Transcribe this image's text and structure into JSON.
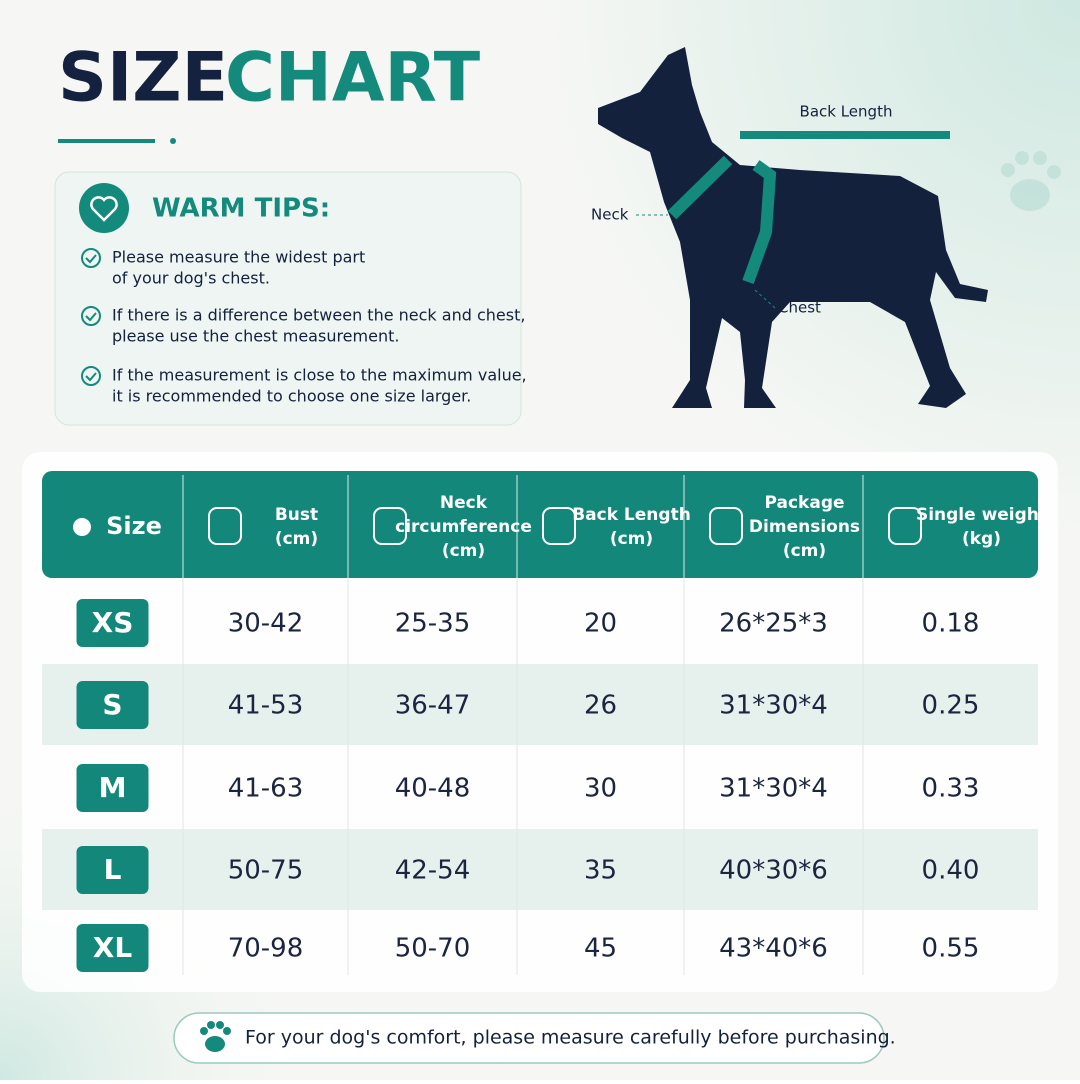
{
  "header": {
    "title_dark": "SIZE",
    "title_accent": "CHART"
  },
  "tips": {
    "title": "WARM TIPS:",
    "items": [
      [
        "Please measure the widest part",
        "of your dog's chest."
      ],
      [
        "If there is a difference between the neck and chest,",
        "please use the chest measurement."
      ],
      [
        "If the measurement is close to the maximum value,",
        "it is recommended to choose one size larger."
      ]
    ]
  },
  "diagram": {
    "back_length": "Back Length",
    "neck": "Neck",
    "chest": "Chest"
  },
  "table": {
    "headers": [
      [
        "Size"
      ],
      [
        "Bust",
        "(cm)"
      ],
      [
        "Neck",
        "circumference",
        "(cm)"
      ],
      [
        "Back Length",
        "(cm)"
      ],
      [
        "Package",
        "Dimensions",
        "(cm)"
      ],
      [
        "Single weight",
        "(kg)"
      ]
    ],
    "rows": [
      [
        "XS",
        "30-42",
        "25-35",
        "20",
        "26*25*3",
        "0.18"
      ],
      [
        "S",
        "41-53",
        "36-47",
        "26",
        "31*30*4",
        "0.25"
      ],
      [
        "M",
        "41-63",
        "40-48",
        "30",
        "31*30*4",
        "0.33"
      ],
      [
        "L",
        "50-75",
        "42-54",
        "35",
        "40*30*6",
        "0.40"
      ],
      [
        "XL",
        "70-98",
        "50-70",
        "45",
        "43*40*6",
        "0.55"
      ]
    ]
  },
  "footer": {
    "note": "For your dog's comfort, please measure carefully before purchasing."
  }
}
